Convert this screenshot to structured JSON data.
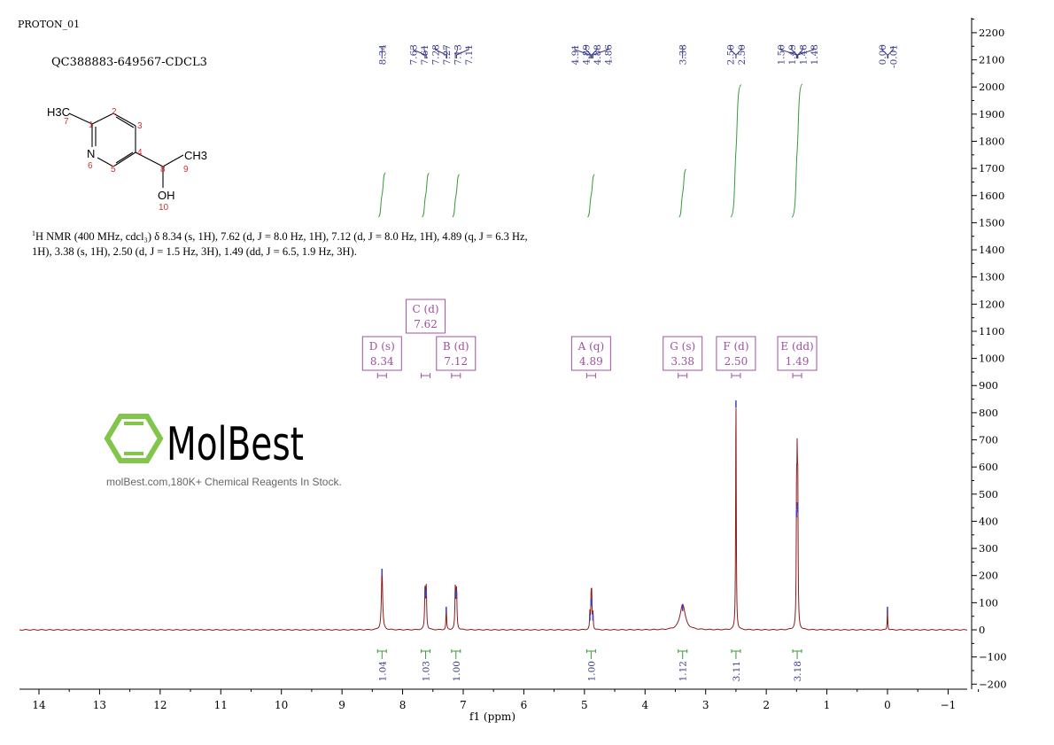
{
  "header": {
    "experiment": "PROTON_01",
    "sample": "QC388883-649567-CDCL3"
  },
  "structure": {
    "labels": [
      "H3C",
      "N",
      "CH3",
      "OH"
    ],
    "atom_numbers": [
      "1",
      "2",
      "3",
      "4",
      "5",
      "6",
      "7",
      "8",
      "9",
      "10"
    ],
    "number_color": "#d03030"
  },
  "description": {
    "sup": "1",
    "text": "H NMR (400 MHz, cdcl₃) δ 8.34 (s, 1H), 7.62 (d, J = 8.0 Hz, 1H), 7.12 (d, J = 8.0 Hz, 1H), 4.89 (q, J = 6.3 Hz, 1H), 3.38 (s, 1H), 2.50 (d, J = 1.5 Hz, 3H), 1.49 (dd, J = 6.5, 1.9 Hz, 3H)."
  },
  "watermark": {
    "logo": "MolBest",
    "tagline": "molBest.com,180K+ Chemical Reagents In Stock.",
    "logo_color": "#7cc242"
  },
  "chart_data": {
    "type": "line",
    "xlabel": "f1 (ppm)",
    "xlim": [
      14.3,
      -1.3
    ],
    "x_reversed": true,
    "ylim": [
      -200,
      2250
    ],
    "xticks": [
      "14",
      "13",
      "12",
      "11",
      "10",
      "9",
      "8",
      "7",
      "6",
      "5",
      "4",
      "3",
      "2",
      "1",
      "0",
      "−1"
    ],
    "yticks": [
      "2200",
      "2100",
      "2000",
      "1900",
      "1800",
      "1700",
      "1600",
      "1500",
      "1400",
      "1300",
      "1200",
      "1100",
      "1000",
      "900",
      "800",
      "700",
      "600",
      "500",
      "400",
      "300",
      "200",
      "100",
      "0",
      "−100",
      "−200"
    ],
    "colors": {
      "spectrum": "#8b1a1a",
      "peak_labels": "#3a3a8c",
      "integrals": "#3a9a3a",
      "multiplets": "#a050a0"
    },
    "peaks": [
      {
        "ppm": 8.34,
        "height": 225,
        "width": 0.012
      },
      {
        "ppm": 7.63,
        "height": 145,
        "width": 0.008
      },
      {
        "ppm": 7.61,
        "height": 150,
        "width": 0.008
      },
      {
        "ppm": 7.28,
        "height": 85,
        "width": 0.006
      },
      {
        "ppm": 7.13,
        "height": 150,
        "width": 0.008
      },
      {
        "ppm": 7.11,
        "height": 140,
        "width": 0.008
      },
      {
        "ppm": 4.91,
        "height": 60,
        "width": 0.006
      },
      {
        "ppm": 4.89,
        "height": 115,
        "width": 0.006
      },
      {
        "ppm": 4.88,
        "height": 115,
        "width": 0.006
      },
      {
        "ppm": 4.86,
        "height": 60,
        "width": 0.006
      },
      {
        "ppm": 3.38,
        "height": 95,
        "width": 0.05
      },
      {
        "ppm": 2.5,
        "height": 845,
        "width": 0.006
      },
      {
        "ppm": 1.5,
        "height": 440,
        "width": 0.006
      },
      {
        "ppm": 1.49,
        "height": 470,
        "width": 0.006
      },
      {
        "ppm": 1.48,
        "height": 460,
        "width": 0.006
      },
      {
        "ppm": 0.0,
        "height": 85,
        "width": 0.005
      }
    ],
    "peak_label_groups": [
      {
        "center": 8.34,
        "labels": [
          "8.34"
        ]
      },
      {
        "center": 7.37,
        "labels": [
          "7.63",
          "7.61",
          "7.28",
          "7.27",
          "7.13",
          "7.11"
        ]
      },
      {
        "center": 4.885,
        "labels": [
          "4.91",
          "4.89",
          "4.88",
          "4.86"
        ]
      },
      {
        "center": 3.38,
        "labels": [
          "3.38"
        ]
      },
      {
        "center": 2.5,
        "labels": [
          "2.50",
          "2.50"
        ]
      },
      {
        "center": 1.49,
        "labels": [
          "1.50",
          "1.49",
          "1.48",
          "1.48"
        ]
      },
      {
        "center": 0.0,
        "labels": [
          "0.00",
          "-0.01"
        ]
      }
    ],
    "peak_label_positions": [
      [
        8.34
      ],
      [
        7.63,
        7.61,
        7.28,
        7.27,
        7.13,
        7.11
      ],
      [
        4.91,
        4.89,
        4.88,
        4.86
      ],
      [
        3.38
      ],
      [
        2.5,
        2.5
      ],
      [
        1.5,
        1.49,
        1.48,
        1.48
      ],
      [
        0.0,
        -0.01
      ]
    ],
    "multiplets": [
      {
        "label": "D (s)",
        "shift": "8.34",
        "ppm": 8.34,
        "raised": false
      },
      {
        "label": "C (d)",
        "shift": "7.62",
        "ppm": 7.62,
        "raised": true
      },
      {
        "label": "B (d)",
        "shift": "7.12",
        "ppm": 7.12,
        "raised": false
      },
      {
        "label": "A (q)",
        "shift": "4.89",
        "ppm": 4.89,
        "raised": false
      },
      {
        "label": "G (s)",
        "shift": "3.38",
        "ppm": 3.38,
        "raised": false
      },
      {
        "label": "F (d)",
        "shift": "2.50",
        "ppm": 2.5,
        "raised": false
      },
      {
        "label": "E (dd)",
        "shift": "1.49",
        "ppm": 1.49,
        "raised": false
      }
    ],
    "integrals": [
      {
        "ppm": 8.34,
        "value": "1.04",
        "rise": 1.04
      },
      {
        "ppm": 7.62,
        "value": "1.03",
        "rise": 1.03
      },
      {
        "ppm": 7.12,
        "value": "1.00",
        "rise": 1.0
      },
      {
        "ppm": 4.89,
        "value": "1.00",
        "rise": 1.0
      },
      {
        "ppm": 3.38,
        "value": "1.12",
        "rise": 1.12
      },
      {
        "ppm": 2.5,
        "value": "3.11",
        "rise": 3.11
      },
      {
        "ppm": 1.49,
        "value": "3.18",
        "rise": 3.18
      }
    ]
  }
}
